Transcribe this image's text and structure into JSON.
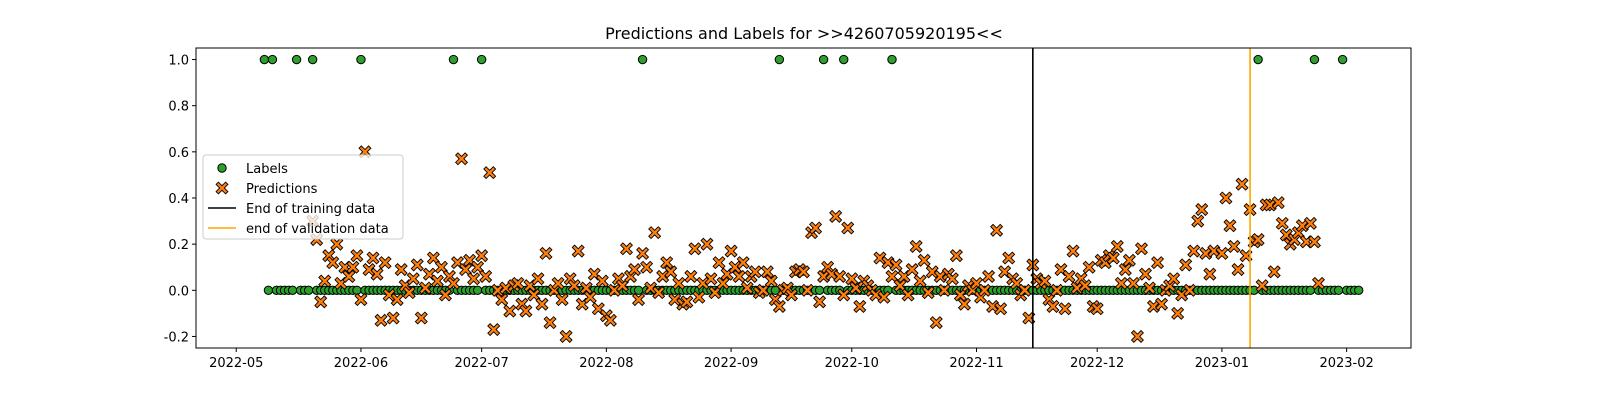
{
  "chart_data": {
    "type": "scatter",
    "title": "Predictions and Labels for >>4260705920195<<",
    "xlabel": "",
    "ylabel": "",
    "x_range": [
      "2022-04-21",
      "2023-02-17"
    ],
    "ylim": [
      -0.25,
      1.05
    ],
    "x_ticks": [
      "2022-05",
      "2022-06",
      "2022-07",
      "2022-08",
      "2022-09",
      "2022-10",
      "2022-11",
      "2022-12",
      "2023-01",
      "2023-02"
    ],
    "x_tick_dates": [
      "2022-05-01",
      "2022-06-01",
      "2022-07-01",
      "2022-08-01",
      "2022-09-01",
      "2022-10-01",
      "2022-11-01",
      "2022-12-01",
      "2023-01-01",
      "2023-02-01"
    ],
    "y_ticks": [
      "-0.2",
      "0.0",
      "0.2",
      "0.4",
      "0.6",
      "0.8",
      "1.0"
    ],
    "y_tick_values": [
      -0.2,
      0.0,
      0.2,
      0.4,
      0.6,
      0.8,
      1.0
    ],
    "grid": false,
    "legend_position": "center-left",
    "legend": [
      {
        "label": "Labels",
        "kind": "circle",
        "color": "#2ca02c"
      },
      {
        "label": "Predictions",
        "kind": "x",
        "color": "#ff7f0e"
      },
      {
        "label": "End of training data",
        "kind": "line",
        "color": "#000000"
      },
      {
        "label": "end of validation data",
        "kind": "line",
        "color": "#ffa500"
      }
    ],
    "vlines": [
      {
        "name": "End of training data",
        "x": "2022-11-15",
        "color": "#000000"
      },
      {
        "name": "end of validation data",
        "x": "2023-01-08",
        "color": "#ffa500"
      }
    ],
    "series": [
      {
        "name": "Labels",
        "marker": "circle",
        "color": "#2ca02c",
        "start": "2022-05-08",
        "end": "2023-02-04",
        "baseline": 0.0,
        "ones": [
          "2022-05-08",
          "2022-05-10",
          "2022-05-16",
          "2022-05-20",
          "2022-06-01",
          "2022-06-24",
          "2022-07-01",
          "2022-08-10",
          "2022-09-13",
          "2022-09-24",
          "2022-09-29",
          "2022-10-11",
          "2023-01-10",
          "2023-01-24",
          "2023-01-31"
        ]
      },
      {
        "name": "Predictions",
        "marker": "x",
        "color": "#ff7f0e",
        "points": [
          [
            "2022-05-20",
            0.3
          ],
          [
            "2022-05-21",
            0.22
          ],
          [
            "2022-05-22",
            -0.05
          ],
          [
            "2022-05-23",
            0.04
          ],
          [
            "2022-05-24",
            0.15
          ],
          [
            "2022-05-25",
            0.12
          ],
          [
            "2022-05-26",
            0.2
          ],
          [
            "2022-05-27",
            0.03
          ],
          [
            "2022-05-28",
            0.1
          ],
          [
            "2022-05-29",
            0.06
          ],
          [
            "2022-05-30",
            0.1
          ],
          [
            "2022-05-31",
            0.15
          ],
          [
            "2022-06-01",
            -0.04
          ],
          [
            "2022-06-02",
            0.6
          ],
          [
            "2022-06-03",
            0.09
          ],
          [
            "2022-06-04",
            0.14
          ],
          [
            "2022-06-05",
            0.07
          ],
          [
            "2022-06-06",
            -0.13
          ],
          [
            "2022-06-07",
            0.12
          ],
          [
            "2022-06-08",
            -0.02
          ],
          [
            "2022-06-09",
            -0.12
          ],
          [
            "2022-06-10",
            -0.04
          ],
          [
            "2022-06-11",
            0.09
          ],
          [
            "2022-06-12",
            0.02
          ],
          [
            "2022-06-13",
            -0.01
          ],
          [
            "2022-06-14",
            0.05
          ],
          [
            "2022-06-15",
            0.11
          ],
          [
            "2022-06-16",
            -0.12
          ],
          [
            "2022-06-17",
            0.01
          ],
          [
            "2022-06-18",
            0.07
          ],
          [
            "2022-06-19",
            0.14
          ],
          [
            "2022-06-20",
            0.04
          ],
          [
            "2022-06-21",
            0.1
          ],
          [
            "2022-06-22",
            -0.02
          ],
          [
            "2022-06-23",
            0.06
          ],
          [
            "2022-06-24",
            0.03
          ],
          [
            "2022-06-25",
            0.12
          ],
          [
            "2022-06-26",
            0.57
          ],
          [
            "2022-06-27",
            0.09
          ],
          [
            "2022-06-28",
            0.13
          ],
          [
            "2022-06-29",
            0.05
          ],
          [
            "2022-06-30",
            0.1
          ],
          [
            "2022-07-01",
            0.15
          ],
          [
            "2022-07-02",
            0.06
          ],
          [
            "2022-07-03",
            0.51
          ],
          [
            "2022-07-04",
            -0.17
          ],
          [
            "2022-07-05",
            0.0
          ],
          [
            "2022-07-06",
            -0.04
          ],
          [
            "2022-07-07",
            0.01
          ],
          [
            "2022-07-08",
            -0.09
          ],
          [
            "2022-07-09",
            0.02
          ],
          [
            "2022-07-10",
            0.03
          ],
          [
            "2022-07-11",
            -0.06
          ],
          [
            "2022-07-12",
            -0.09
          ],
          [
            "2022-07-13",
            0.02
          ],
          [
            "2022-07-14",
            -0.02
          ],
          [
            "2022-07-15",
            0.05
          ],
          [
            "2022-07-16",
            -0.06
          ],
          [
            "2022-07-17",
            0.16
          ],
          [
            "2022-07-18",
            -0.14
          ],
          [
            "2022-07-19",
            0.0
          ],
          [
            "2022-07-20",
            0.03
          ],
          [
            "2022-07-21",
            -0.04
          ],
          [
            "2022-07-22",
            -0.2
          ],
          [
            "2022-07-23",
            0.05
          ],
          [
            "2022-07-24",
            0.02
          ],
          [
            "2022-07-25",
            0.17
          ],
          [
            "2022-07-26",
            -0.06
          ],
          [
            "2022-07-27",
            0.01
          ],
          [
            "2022-07-28",
            -0.03
          ],
          [
            "2022-07-29",
            0.07
          ],
          [
            "2022-07-30",
            -0.08
          ],
          [
            "2022-07-31",
            0.04
          ],
          [
            "2022-08-01",
            -0.11
          ],
          [
            "2022-08-02",
            -0.13
          ],
          [
            "2022-08-03",
            0.0
          ],
          [
            "2022-08-04",
            0.05
          ],
          [
            "2022-08-05",
            0.02
          ],
          [
            "2022-08-06",
            0.18
          ],
          [
            "2022-08-07",
            0.06
          ],
          [
            "2022-08-08",
            0.09
          ],
          [
            "2022-08-09",
            -0.04
          ],
          [
            "2022-08-10",
            0.16
          ],
          [
            "2022-08-11",
            0.1
          ],
          [
            "2022-08-12",
            0.01
          ],
          [
            "2022-08-13",
            0.25
          ],
          [
            "2022-08-14",
            -0.01
          ],
          [
            "2022-08-15",
            0.06
          ],
          [
            "2022-08-16",
            0.12
          ],
          [
            "2022-08-17",
            0.08
          ],
          [
            "2022-08-18",
            -0.04
          ],
          [
            "2022-08-19",
            0.03
          ],
          [
            "2022-08-20",
            -0.06
          ],
          [
            "2022-08-21",
            -0.05
          ],
          [
            "2022-08-22",
            0.06
          ],
          [
            "2022-08-23",
            0.18
          ],
          [
            "2022-08-24",
            -0.03
          ],
          [
            "2022-08-25",
            0.03
          ],
          [
            "2022-08-26",
            0.2
          ],
          [
            "2022-08-27",
            0.05
          ],
          [
            "2022-08-28",
            -0.01
          ],
          [
            "2022-08-29",
            0.12
          ],
          [
            "2022-08-30",
            0.03
          ],
          [
            "2022-08-31",
            0.07
          ],
          [
            "2022-09-01",
            0.17
          ],
          [
            "2022-09-02",
            0.1
          ],
          [
            "2022-09-03",
            0.06
          ],
          [
            "2022-09-04",
            0.12
          ],
          [
            "2022-09-05",
            0.01
          ],
          [
            "2022-09-06",
            0.06
          ],
          [
            "2022-09-07",
            0.08
          ],
          [
            "2022-09-08",
            -0.01
          ],
          [
            "2022-09-09",
            0.0
          ],
          [
            "2022-09-10",
            0.08
          ],
          [
            "2022-09-11",
            0.04
          ],
          [
            "2022-09-12",
            -0.04
          ],
          [
            "2022-09-13",
            -0.07
          ],
          [
            "2022-09-14",
            0.0
          ],
          [
            "2022-09-15",
            0.01
          ],
          [
            "2022-09-16",
            -0.02
          ],
          [
            "2022-09-17",
            0.08
          ],
          [
            "2022-09-18",
            0.09
          ],
          [
            "2022-09-19",
            0.08
          ],
          [
            "2022-09-20",
            0.0
          ],
          [
            "2022-09-21",
            0.25
          ],
          [
            "2022-09-22",
            0.27
          ],
          [
            "2022-09-23",
            -0.05
          ],
          [
            "2022-09-24",
            0.06
          ],
          [
            "2022-09-25",
            0.1
          ],
          [
            "2022-09-26",
            0.07
          ],
          [
            "2022-09-27",
            0.32
          ],
          [
            "2022-09-28",
            0.06
          ],
          [
            "2022-09-29",
            -0.02
          ],
          [
            "2022-09-30",
            0.27
          ],
          [
            "2022-10-01",
            0.05
          ],
          [
            "2022-10-02",
            0.01
          ],
          [
            "2022-10-03",
            -0.07
          ],
          [
            "2022-10-04",
            0.04
          ],
          [
            "2022-10-05",
            0.02
          ],
          [
            "2022-10-06",
            0.0
          ],
          [
            "2022-10-07",
            -0.02
          ],
          [
            "2022-10-08",
            0.14
          ],
          [
            "2022-10-09",
            -0.03
          ],
          [
            "2022-10-10",
            0.12
          ],
          [
            "2022-10-11",
            0.06
          ],
          [
            "2022-10-12",
            0.11
          ],
          [
            "2022-10-13",
            0.02
          ],
          [
            "2022-10-14",
            0.06
          ],
          [
            "2022-10-15",
            -0.02
          ],
          [
            "2022-10-16",
            0.09
          ],
          [
            "2022-10-17",
            0.19
          ],
          [
            "2022-10-18",
            0.04
          ],
          [
            "2022-10-19",
            0.13
          ],
          [
            "2022-10-20",
            -0.01
          ],
          [
            "2022-10-21",
            0.08
          ],
          [
            "2022-10-22",
            -0.14
          ],
          [
            "2022-10-23",
            0.06
          ],
          [
            "2022-10-24",
            0.0
          ],
          [
            "2022-10-25",
            0.07
          ],
          [
            "2022-10-26",
            0.05
          ],
          [
            "2022-10-27",
            0.15
          ],
          [
            "2022-10-28",
            -0.02
          ],
          [
            "2022-10-29",
            -0.06
          ],
          [
            "2022-10-30",
            0.02
          ],
          [
            "2022-10-31",
            0.0
          ],
          [
            "2022-11-01",
            0.03
          ],
          [
            "2022-11-02",
            -0.03
          ],
          [
            "2022-11-03",
            0.0
          ],
          [
            "2022-11-04",
            0.06
          ],
          [
            "2022-11-05",
            -0.07
          ],
          [
            "2022-11-06",
            0.26
          ],
          [
            "2022-11-07",
            -0.08
          ],
          [
            "2022-11-08",
            0.08
          ],
          [
            "2022-11-09",
            0.14
          ],
          [
            "2022-11-10",
            0.05
          ],
          [
            "2022-11-11",
            0.03
          ],
          [
            "2022-11-12",
            -0.02
          ],
          [
            "2022-11-13",
            0.0
          ],
          [
            "2022-11-14",
            -0.12
          ],
          [
            "2022-11-15",
            0.11
          ],
          [
            "2022-11-16",
            0.05
          ],
          [
            "2022-11-17",
            0.03
          ],
          [
            "2022-11-18",
            0.04
          ],
          [
            "2022-11-19",
            -0.04
          ],
          [
            "2022-11-20",
            -0.07
          ],
          [
            "2022-11-21",
            0.0
          ],
          [
            "2022-11-22",
            0.09
          ],
          [
            "2022-11-23",
            -0.08
          ],
          [
            "2022-11-24",
            0.06
          ],
          [
            "2022-11-25",
            0.17
          ],
          [
            "2022-11-26",
            0.01
          ],
          [
            "2022-11-27",
            0.05
          ],
          [
            "2022-11-28",
            0.02
          ],
          [
            "2022-11-29",
            0.1
          ],
          [
            "2022-11-30",
            -0.07
          ],
          [
            "2022-12-01",
            -0.08
          ],
          [
            "2022-12-02",
            0.13
          ],
          [
            "2022-12-03",
            0.12
          ],
          [
            "2022-12-04",
            0.15
          ],
          [
            "2022-12-05",
            0.14
          ],
          [
            "2022-12-06",
            0.19
          ],
          [
            "2022-12-07",
            0.03
          ],
          [
            "2022-12-08",
            0.09
          ],
          [
            "2022-12-09",
            0.13
          ],
          [
            "2022-12-10",
            0.03
          ],
          [
            "2022-12-11",
            -0.2
          ],
          [
            "2022-12-12",
            0.18
          ],
          [
            "2022-12-13",
            0.07
          ],
          [
            "2022-12-14",
            0.01
          ],
          [
            "2022-12-15",
            -0.07
          ],
          [
            "2022-12-16",
            0.12
          ],
          [
            "2022-12-17",
            -0.06
          ],
          [
            "2022-12-18",
            0.0
          ],
          [
            "2022-12-19",
            0.02
          ],
          [
            "2022-12-20",
            0.05
          ],
          [
            "2022-12-21",
            -0.1
          ],
          [
            "2022-12-22",
            -0.02
          ],
          [
            "2022-12-23",
            0.11
          ],
          [
            "2022-12-24",
            0.0
          ],
          [
            "2022-12-25",
            0.17
          ],
          [
            "2022-12-26",
            0.3
          ],
          [
            "2022-12-27",
            0.35
          ],
          [
            "2022-12-28",
            0.16
          ],
          [
            "2022-12-29",
            0.07
          ],
          [
            "2022-12-30",
            0.17
          ],
          [
            "2023-01-01",
            0.16
          ],
          [
            "2023-01-02",
            0.4
          ],
          [
            "2023-01-03",
            0.28
          ],
          [
            "2023-01-04",
            0.19
          ],
          [
            "2023-01-05",
            0.09
          ],
          [
            "2023-01-06",
            0.46
          ],
          [
            "2023-01-07",
            0.15
          ],
          [
            "2023-01-08",
            0.35
          ],
          [
            "2023-01-09",
            0.21
          ],
          [
            "2023-01-10",
            0.22
          ],
          [
            "2023-01-11",
            0.02
          ],
          [
            "2023-01-12",
            0.37
          ],
          [
            "2023-01-13",
            0.37
          ],
          [
            "2023-01-14",
            0.08
          ],
          [
            "2023-01-15",
            0.38
          ],
          [
            "2023-01-16",
            0.29
          ],
          [
            "2023-01-17",
            0.24
          ],
          [
            "2023-01-18",
            0.2
          ],
          [
            "2023-01-19",
            0.22
          ],
          [
            "2023-01-20",
            0.25
          ],
          [
            "2023-01-21",
            0.28
          ],
          [
            "2023-01-22",
            0.21
          ],
          [
            "2023-01-23",
            0.29
          ],
          [
            "2023-01-24",
            0.21
          ],
          [
            "2023-01-25",
            0.03
          ]
        ]
      }
    ]
  }
}
